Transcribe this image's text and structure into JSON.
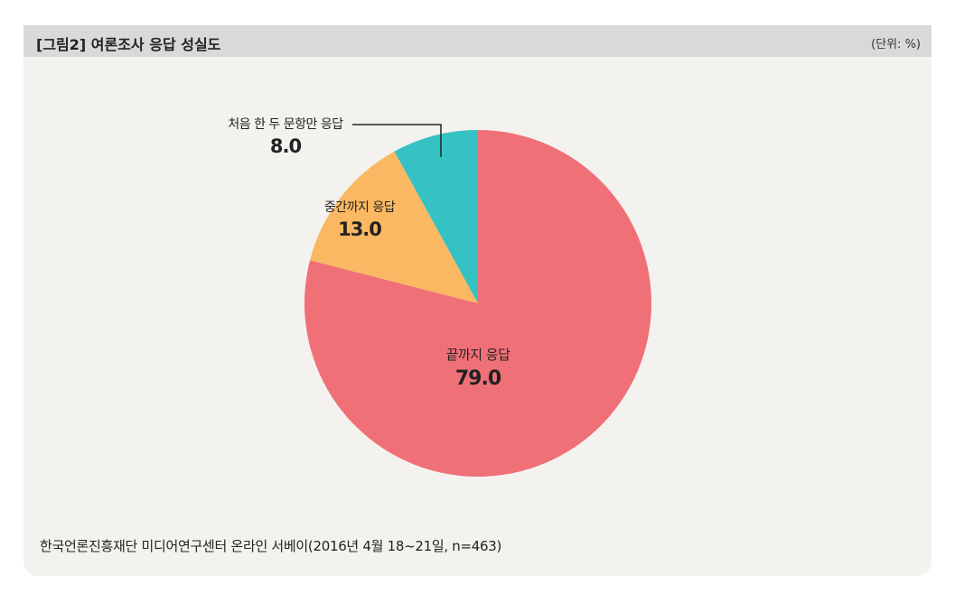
{
  "header": {
    "title": "[그림2] 여론조사 응답 성실도",
    "unit": "(단위: %)"
  },
  "source": "한국언론진흥재단 미디어연구센터 온라인 서베이(2016년 4월 18~21일, n=463)",
  "chart_data": {
    "type": "pie",
    "title": "[그림2] 여론조사 응답 성실도",
    "unit": "%",
    "start": "12 o'clock",
    "direction": "clockwise",
    "slices": [
      {
        "label": "끝까지 응답",
        "value": 79.0,
        "value_label": "79.0",
        "color": "#f07078"
      },
      {
        "label": "중간까지 응답",
        "value": 13.0,
        "value_label": "13.0",
        "color": "#fbb862"
      },
      {
        "label": "처음 한 두 문항만 응답",
        "value": 8.0,
        "value_label": "8.0",
        "color": "#35c2c4"
      }
    ]
  }
}
